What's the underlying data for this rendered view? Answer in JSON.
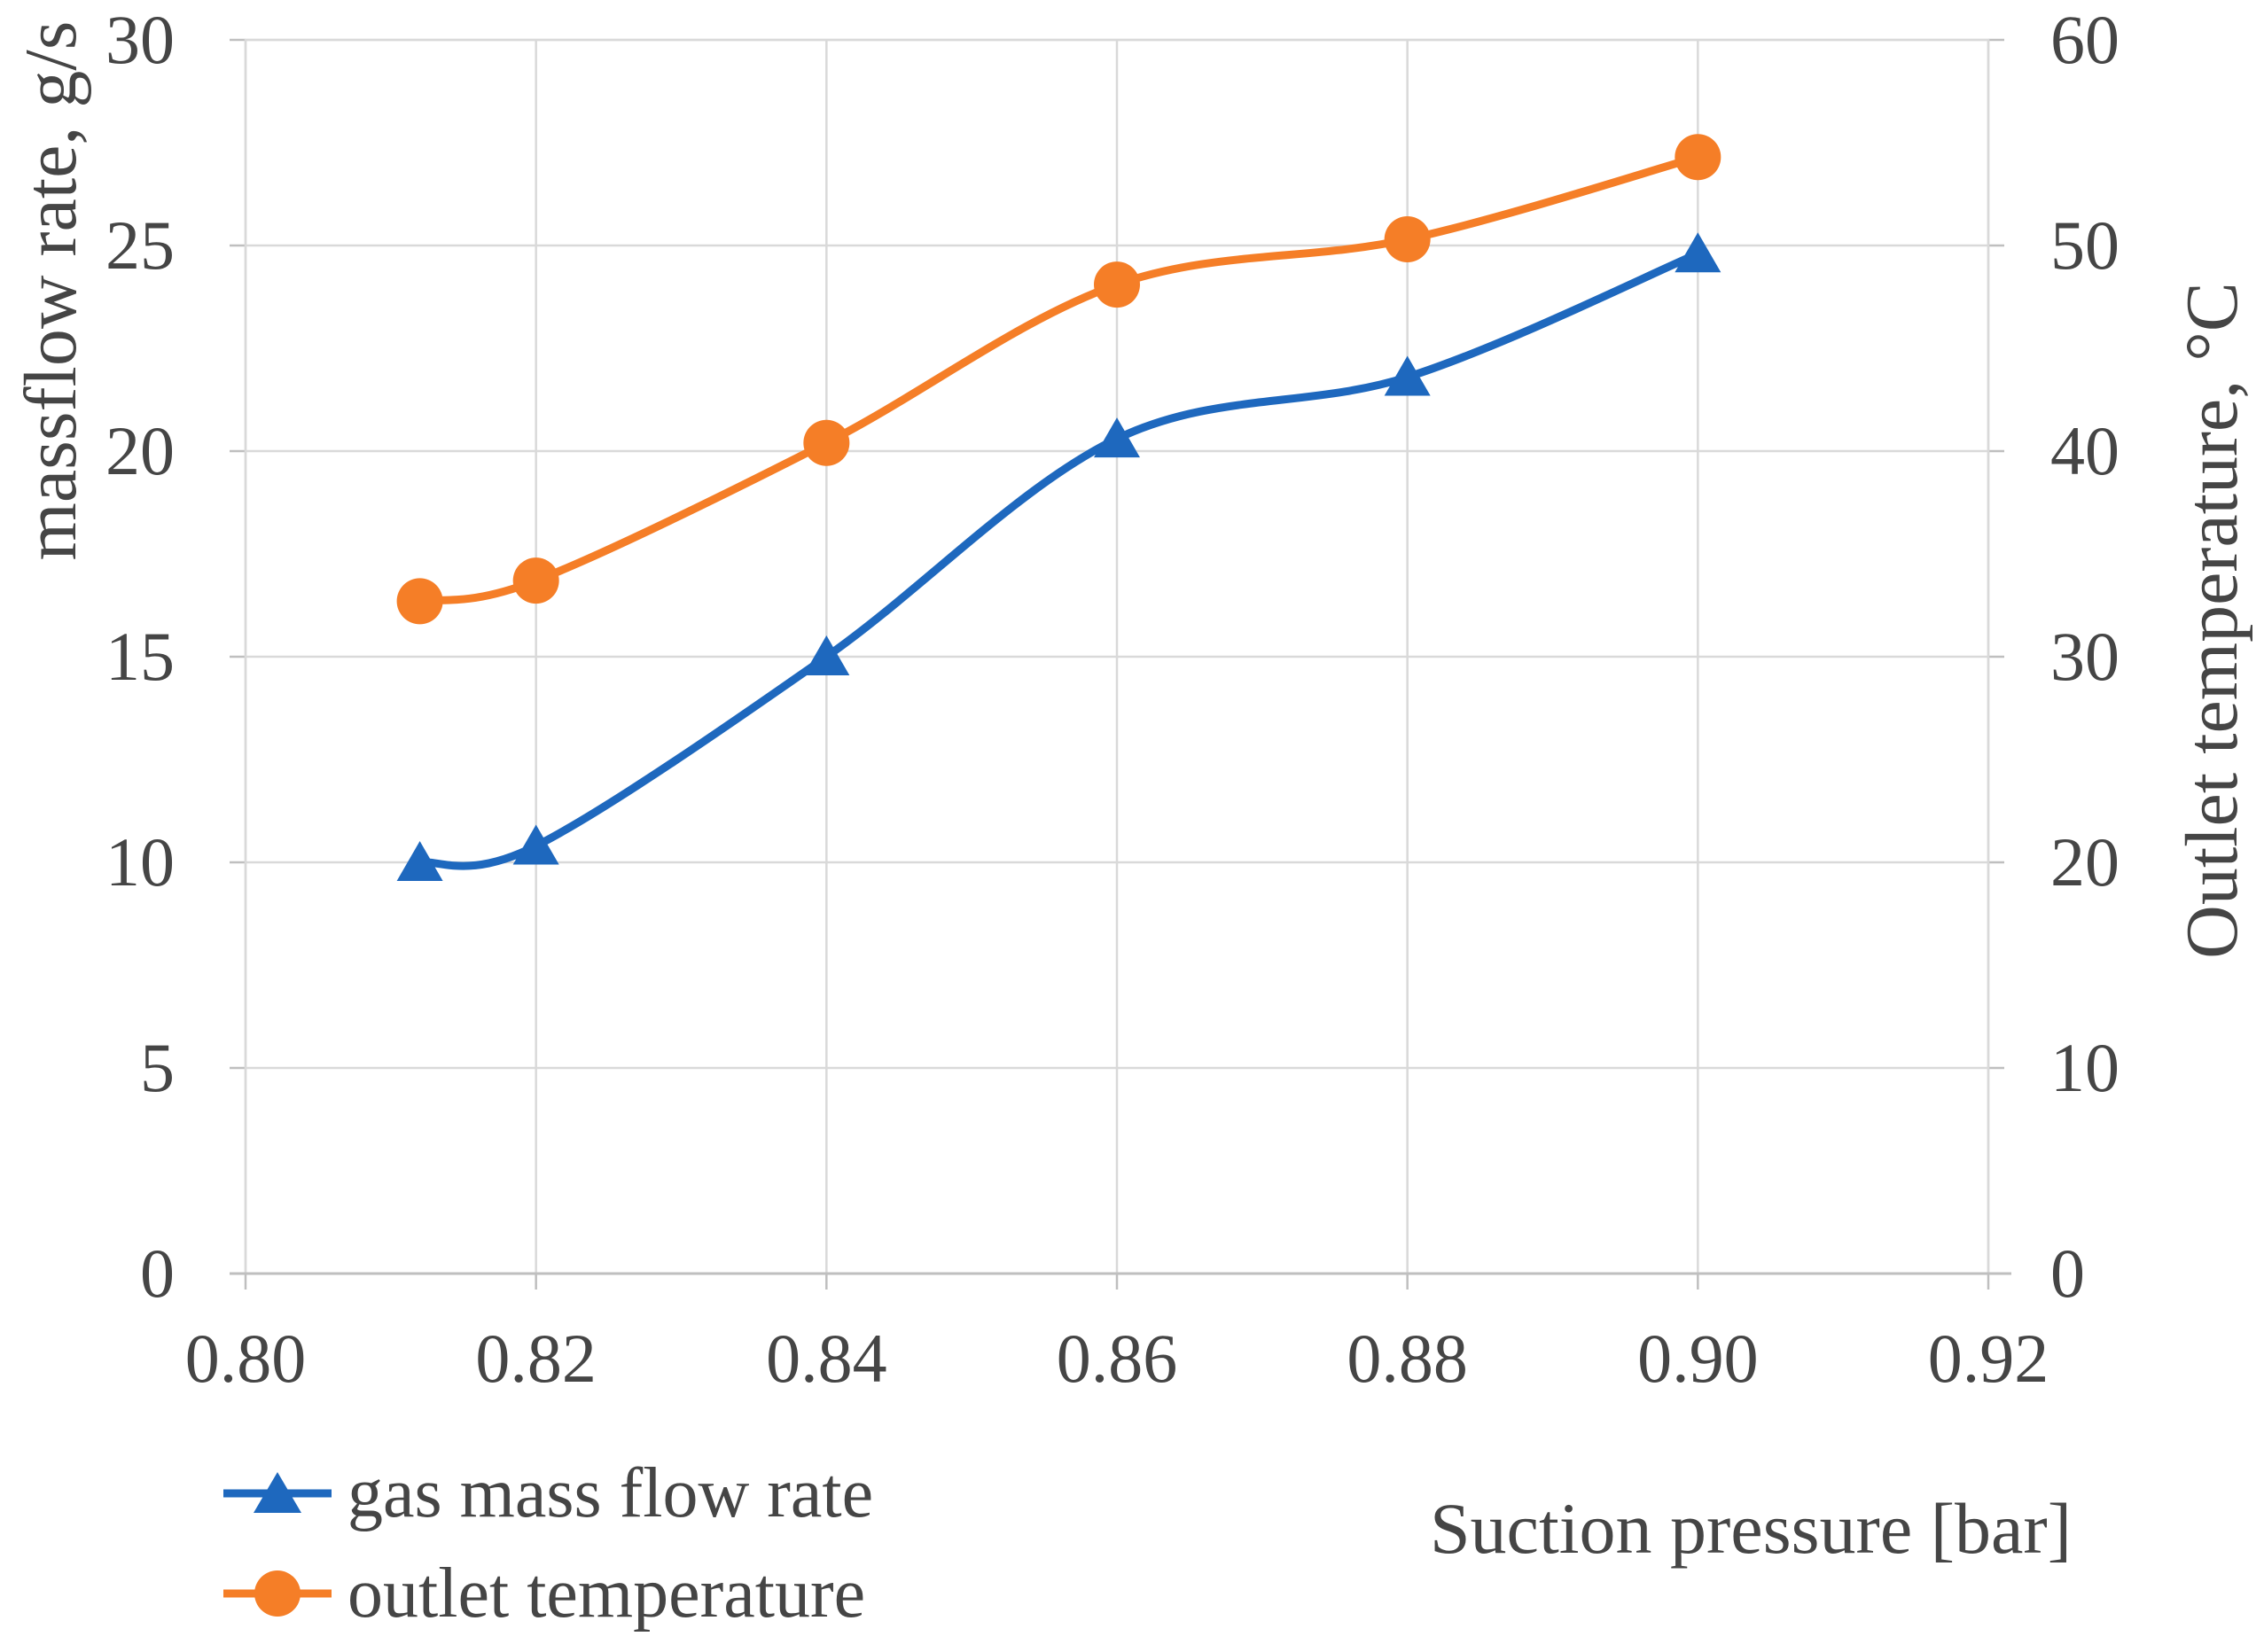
{
  "chart_data": {
    "type": "line",
    "title": "",
    "x": [
      0.812,
      0.82,
      0.84,
      0.86,
      0.88,
      0.9
    ],
    "series": [
      {
        "name": "gas mass flow rate",
        "axis": "left",
        "marker": "triangle",
        "color": "#1E68BE",
        "values": [
          10.0,
          10.4,
          15.0,
          20.3,
          21.8,
          24.8
        ]
      },
      {
        "name": "outlet temperature",
        "axis": "right",
        "marker": "circle",
        "color": "#F57E27",
        "values": [
          32.7,
          33.7,
          40.4,
          48.1,
          50.3,
          54.3
        ]
      }
    ],
    "x_axis": {
      "label": "Suction pressure [bar]",
      "min": 0.8,
      "max": 0.92,
      "tick_step": 0.02,
      "ticks": [
        "0.80",
        "0.82",
        "0.84",
        "0.86",
        "0.88",
        "0.90",
        "0.92"
      ]
    },
    "y_left": {
      "label": "massflow rate, g/s",
      "min": 0,
      "max": 30,
      "tick_step": 5,
      "ticks": [
        "30",
        "25",
        "20",
        "15",
        "10",
        "5",
        "0"
      ]
    },
    "y_right": {
      "label": "Outlet temperature, °C",
      "min": 0,
      "max": 60,
      "tick_step": 10,
      "ticks": [
        "60",
        "50",
        "40",
        "30",
        "20",
        "10",
        "0"
      ]
    },
    "grid": true,
    "legend_position": "bottom-left",
    "colors": {
      "grid": "#D9D9D9",
      "axis_line": "#BFBFBF",
      "text": "#454545"
    }
  }
}
